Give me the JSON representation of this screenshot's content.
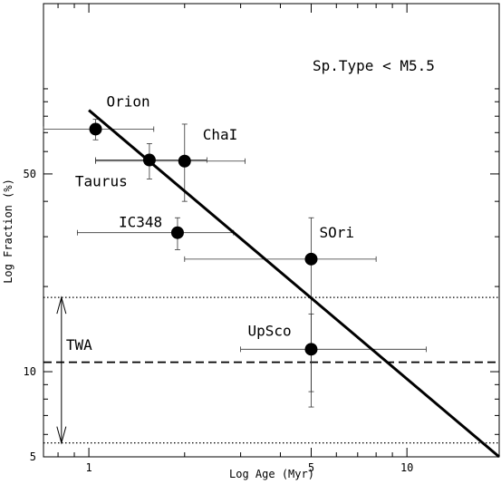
{
  "chart_data": {
    "type": "scatter",
    "title": "",
    "annotation": "Sp.Type < M5.5",
    "xlabel": "Log Age (Myr)",
    "ylabel": "Log Fraction (%)",
    "xscale": "log",
    "yscale": "log",
    "xlim": [
      0.72,
      19.5
    ],
    "ylim": [
      5,
      200
    ],
    "xticks": [
      1,
      5,
      10
    ],
    "xtick_labels": [
      "1",
      "5",
      "10"
    ],
    "yticks": [
      5,
      10,
      50
    ],
    "ytick_labels": [
      "5",
      "10",
      "50"
    ],
    "grid": false,
    "legend": "none",
    "points": [
      {
        "label": "Orion",
        "x": 1.05,
        "y": 72,
        "xerr": [
          0.72,
          1.6
        ],
        "yerr": [
          66,
          78
        ]
      },
      {
        "label": "Taurus",
        "x": 1.55,
        "y": 56,
        "xerr": [
          1.05,
          2.35
        ],
        "yerr": [
          48,
          64
        ]
      },
      {
        "label": "ChaI",
        "x": 2.0,
        "y": 55.5,
        "xerr": [
          1.05,
          3.1
        ],
        "yerr": [
          40,
          75
        ]
      },
      {
        "label": "IC348",
        "x": 1.9,
        "y": 31,
        "xerr": [
          0.92,
          2.85
        ],
        "yerr": [
          27,
          35
        ]
      },
      {
        "label": "SOri",
        "x": 5.0,
        "y": 25,
        "xerr": [
          2.0,
          8.0
        ],
        "yerr": [
          7.5,
          35
        ]
      },
      {
        "label": "UpSco",
        "x": 5.0,
        "y": 12,
        "xerr": [
          3.0,
          11.5
        ],
        "yerr": [
          8.5,
          16
        ]
      }
    ],
    "fit_line": {
      "x": [
        1.0,
        19.5
      ],
      "y": [
        84,
        5
      ]
    },
    "twa": {
      "label": "TWA",
      "value": 10.8,
      "range": [
        5.6,
        18.3
      ],
      "arrow_x": 0.82
    }
  }
}
